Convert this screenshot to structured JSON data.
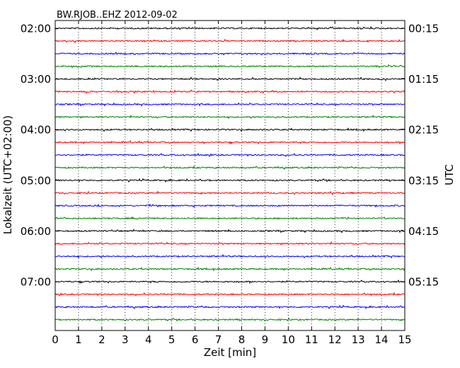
{
  "chart_data": {
    "type": "line",
    "title": "BW.RJOB..EHZ 2012-09-02",
    "xlabel": "Zeit  [min]",
    "ylabel": "Lokalzeit (UTC+02:00)",
    "ylabel_right": "UTC",
    "xlim": [
      0,
      15
    ],
    "x_ticks": [
      "0",
      "1",
      "2",
      "3",
      "4",
      "5",
      "6",
      "7",
      "8",
      "9",
      "10",
      "11",
      "12",
      "13",
      "14",
      "15"
    ],
    "grid": "vertical dotted",
    "trace_colors": [
      "#000000",
      "#ff0000",
      "#0000ff",
      "#008000"
    ],
    "trace_count": 24,
    "trace_interval_minutes": 15,
    "y_ticks_left": [
      "02:00",
      "03:00",
      "04:00",
      "05:00",
      "06:00",
      "07:00"
    ],
    "y_ticks_right": [
      "00:15",
      "01:15",
      "02:15",
      "03:15",
      "04:15",
      "05:15"
    ]
  }
}
